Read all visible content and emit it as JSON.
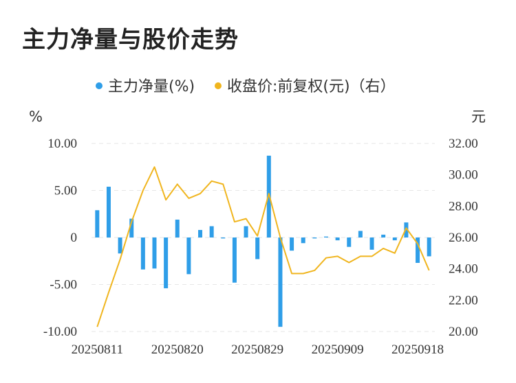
{
  "chart_data": {
    "type": "bar+line",
    "title": "主力净量与股价走势",
    "legend": [
      "主力净量(%)",
      "收盘价:前复权(元)（右）"
    ],
    "left_unit": "%",
    "right_unit": "元",
    "left_ticks": [
      "10.00",
      "5.00",
      "0",
      "-5.00",
      "-10.00"
    ],
    "right_ticks": [
      "32.00",
      "30.00",
      "28.00",
      "26.00",
      "24.00",
      "22.00",
      "20.00"
    ],
    "x_tick_labels": [
      "20250811",
      "20250820",
      "20250829",
      "20250909",
      "20250918"
    ],
    "x_tick_indices": [
      0,
      7,
      14,
      21,
      28
    ],
    "left_ylim": [
      -10,
      10
    ],
    "right_ylim": [
      20,
      32
    ],
    "series": [
      {
        "name": "主力净量(%)",
        "axis": "left",
        "type": "bar",
        "values": [
          2.9,
          5.4,
          -1.7,
          2.0,
          -3.4,
          -3.3,
          -5.4,
          1.9,
          -3.9,
          0.8,
          1.2,
          -0.1,
          -4.8,
          1.2,
          -2.3,
          8.7,
          -9.5,
          -1.4,
          -0.6,
          -0.1,
          0.1,
          -0.3,
          -1.0,
          0.7,
          -1.3,
          0.3,
          -0.3,
          1.6,
          -2.7,
          -2.0
        ]
      },
      {
        "name": "收盘价:前复权(元)（右）",
        "axis": "right",
        "type": "line",
        "values": [
          20.3,
          22.5,
          24.6,
          27.0,
          29.0,
          30.5,
          28.4,
          29.4,
          28.5,
          28.8,
          29.6,
          29.4,
          27.0,
          27.2,
          26.1,
          28.8,
          26.0,
          23.7,
          23.7,
          23.9,
          24.7,
          24.8,
          24.4,
          24.8,
          24.8,
          25.3,
          25.0,
          26.6,
          25.6,
          23.9
        ]
      }
    ],
    "colors": {
      "bar": "#2f9ee8",
      "line": "#f0b51e"
    }
  }
}
